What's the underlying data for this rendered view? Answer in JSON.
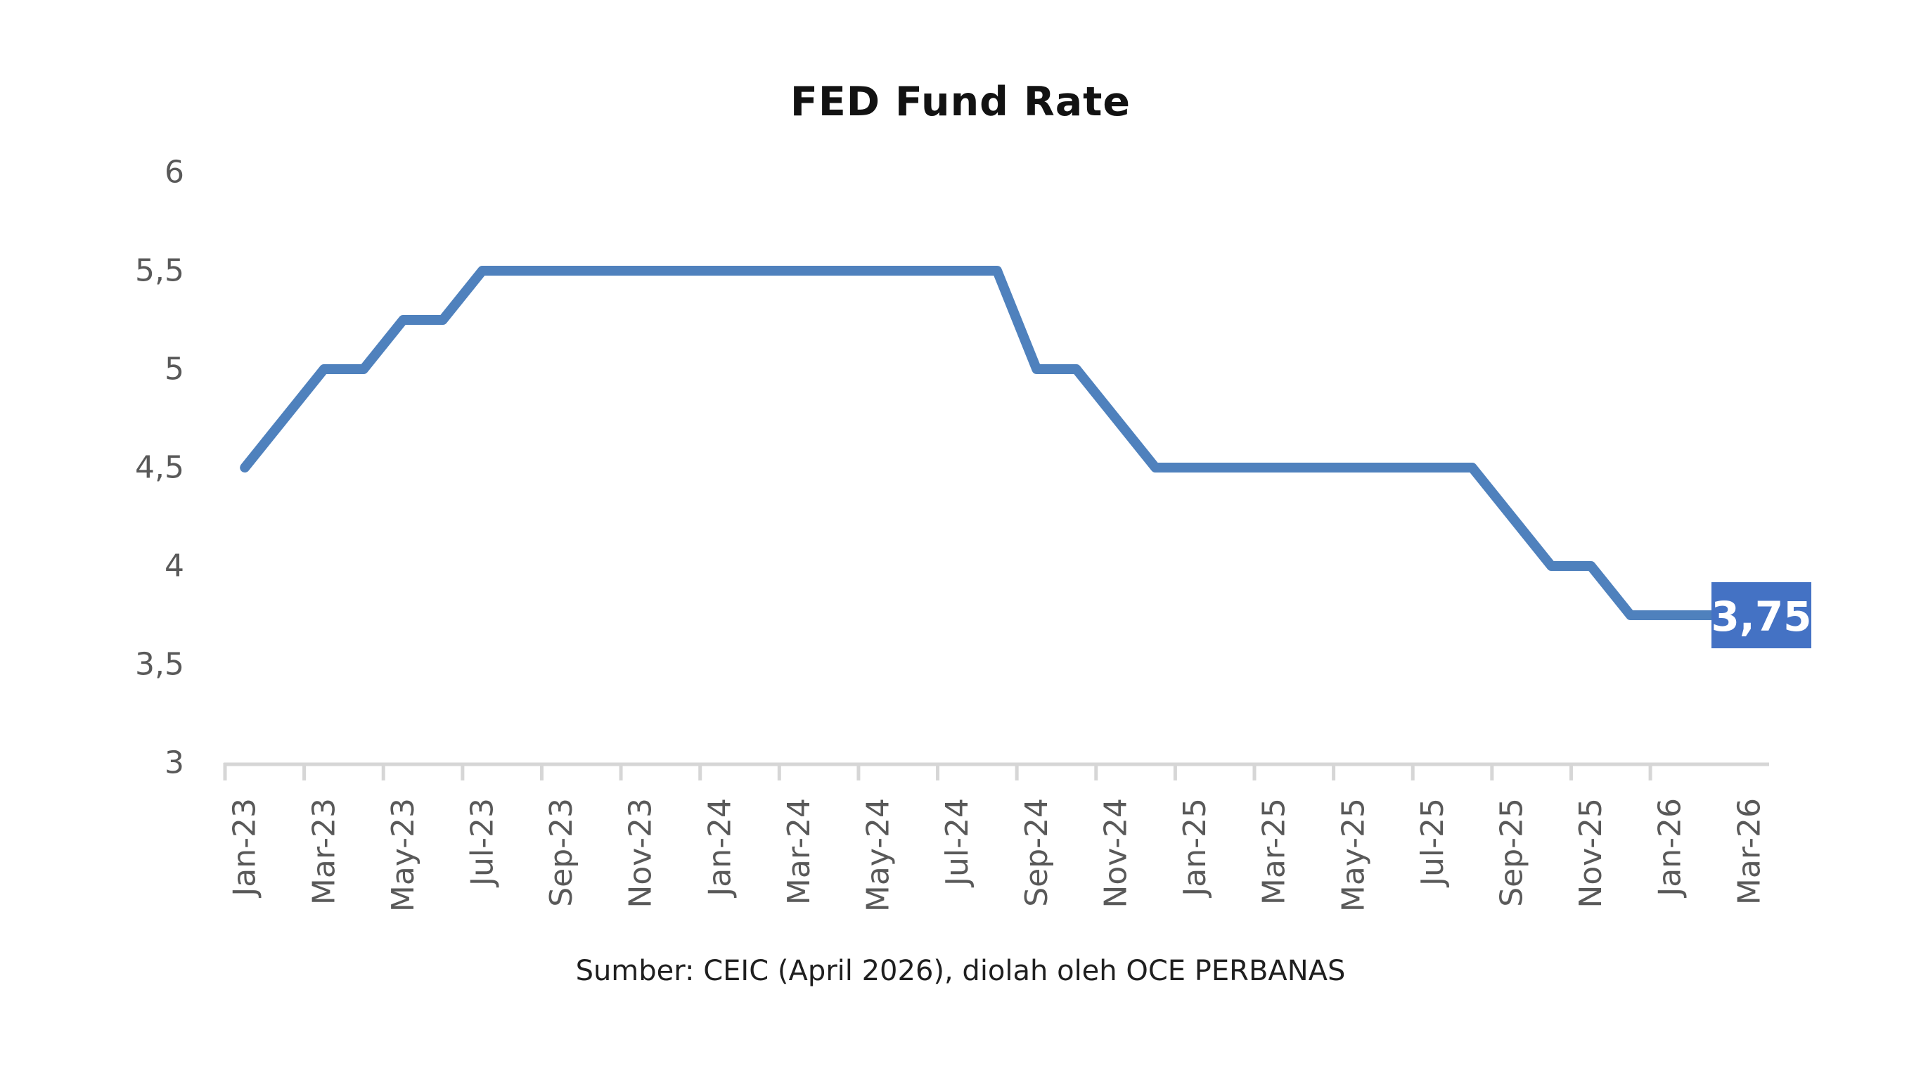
{
  "title": "FED Fund Rate",
  "source_note": "Sumber: CEIC (April 2026), diolah oleh OCE PERBANAS",
  "colors": {
    "line": "#4F81BD",
    "label_box": "#4472C4",
    "label_text": "#FFFFFF",
    "axis": "#D6D6D6",
    "tick_text": "#595959",
    "title_text": "#121212",
    "source_text": "#1F1F1F",
    "background": "#FFFFFF"
  },
  "chart_data": {
    "type": "line",
    "title": "FED Fund Rate",
    "x": [
      "Jan-23",
      "Feb-23",
      "Mar-23",
      "Apr-23",
      "May-23",
      "Jun-23",
      "Jul-23",
      "Aug-23",
      "Sep-23",
      "Oct-23",
      "Nov-23",
      "Dec-23",
      "Jan-24",
      "Feb-24",
      "Mar-24",
      "Apr-24",
      "May-24",
      "Jun-24",
      "Jul-24",
      "Aug-24",
      "Sep-24",
      "Oct-24",
      "Nov-24",
      "Dec-24",
      "Jan-25",
      "Feb-25",
      "Mar-25",
      "Apr-25",
      "May-25",
      "Jun-25",
      "Jul-25",
      "Aug-25",
      "Sep-25",
      "Oct-25",
      "Nov-25",
      "Dec-25",
      "Jan-26",
      "Feb-26",
      "Mar-26"
    ],
    "values": [
      4.5,
      4.75,
      5.0,
      5.0,
      5.25,
      5.25,
      5.5,
      5.5,
      5.5,
      5.5,
      5.5,
      5.5,
      5.5,
      5.5,
      5.5,
      5.5,
      5.5,
      5.5,
      5.5,
      5.5,
      5.0,
      5.0,
      4.75,
      4.5,
      4.5,
      4.5,
      4.5,
      4.5,
      4.5,
      4.5,
      4.5,
      4.5,
      4.25,
      4.0,
      4.0,
      3.75,
      3.75,
      3.75,
      3.75
    ],
    "x_tick_labels": [
      "Jan-23",
      "Mar-23",
      "May-23",
      "Jul-23",
      "Sep-23",
      "Nov-23",
      "Jan-24",
      "Mar-24",
      "May-24",
      "Jul-24",
      "Sep-24",
      "Nov-24",
      "Jan-25",
      "Mar-25",
      "May-25",
      "Jul-25",
      "Sep-25",
      "Nov-25",
      "Jan-26",
      "Mar-26"
    ],
    "x_label_interval": 2,
    "ylim": [
      3,
      6
    ],
    "yticks": [
      6,
      5.5,
      5,
      4.5,
      4,
      3.5,
      3
    ],
    "ytick_labels": [
      "6",
      "5,5",
      "5",
      "4,5",
      "4",
      "3,5",
      "3"
    ],
    "grid": false,
    "legend_position": "none",
    "last_point_label": "3,75",
    "xlabel": "",
    "ylabel": ""
  }
}
